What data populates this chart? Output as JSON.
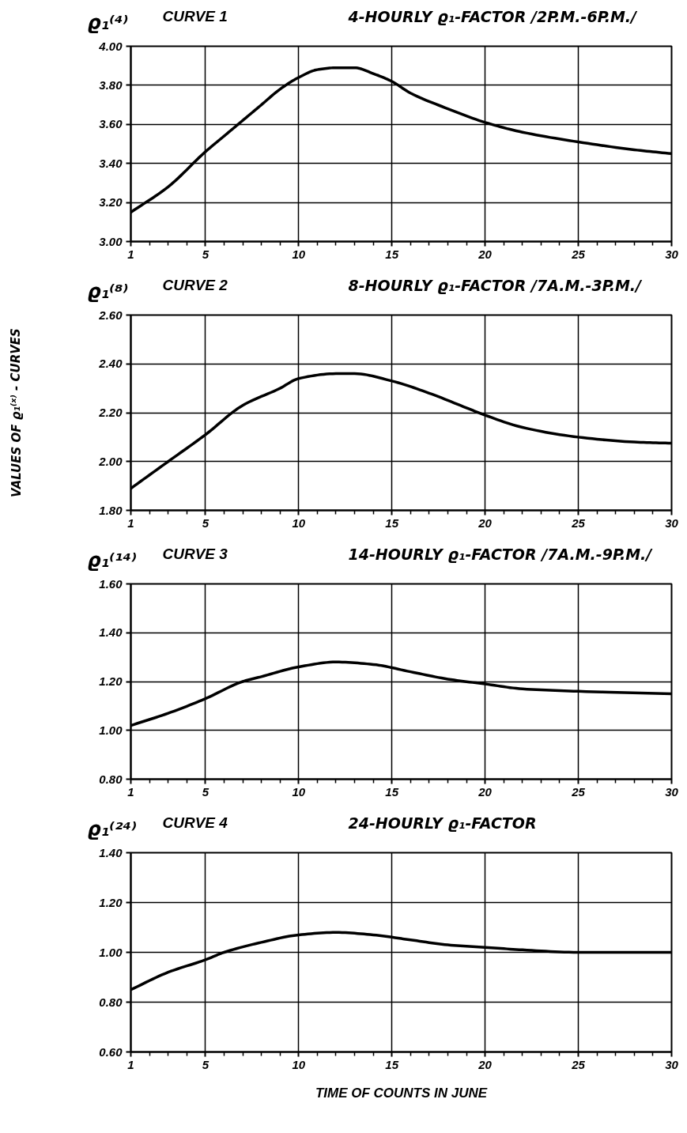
{
  "chart_data": [
    {
      "type": "line",
      "title": "CURVE 1",
      "subtitle": "4-HOURLY ϱ₁-FACTOR /2P.M.-6P.M./",
      "ylabel": "ϱ₁⁽⁴⁾",
      "x": [
        1,
        3,
        5,
        6,
        7,
        8,
        9,
        10,
        11,
        12,
        13,
        14,
        15,
        16,
        18,
        20,
        22,
        25,
        28,
        30
      ],
      "series": [
        {
          "color": "#000000",
          "values": [
            3.15,
            3.28,
            3.46,
            3.54,
            3.62,
            3.7,
            3.78,
            3.84,
            3.88,
            3.89,
            3.89,
            3.86,
            3.82,
            3.76,
            3.68,
            3.61,
            3.56,
            3.51,
            3.47,
            3.45
          ]
        }
      ],
      "xlim": [
        1,
        30
      ],
      "ylim": [
        3.0,
        4.0
      ],
      "xticks": [
        1,
        {
          "value": 2,
          "label": null
        },
        {
          "value": 3,
          "label": null
        },
        {
          "value": 4,
          "label": null
        },
        5,
        {
          "value": 6,
          "label": null
        },
        {
          "value": 7,
          "label": null
        },
        {
          "value": 8,
          "label": null
        },
        {
          "value": 9,
          "label": null
        },
        10,
        {
          "value": 11,
          "label": null
        },
        {
          "value": 12,
          "label": null
        },
        {
          "value": 13,
          "label": null
        },
        {
          "value": 14,
          "label": null
        },
        15,
        {
          "value": 16,
          "label": null
        },
        {
          "value": 17,
          "label": null
        },
        {
          "value": 18,
          "label": null
        },
        {
          "value": 19,
          "label": null
        },
        20,
        {
          "value": 21,
          "label": null
        },
        {
          "value": 22,
          "label": null
        },
        {
          "value": 23,
          "label": null
        },
        {
          "value": 24,
          "label": null
        },
        25,
        {
          "value": 26,
          "label": null
        },
        {
          "value": 27,
          "label": null
        },
        {
          "value": 28,
          "label": null
        },
        {
          "value": 29,
          "label": null
        },
        30
      ],
      "yticks": [
        {
          "value": 3.0,
          "label": "3.00"
        },
        {
          "value": 3.2,
          "label": "3.20"
        },
        {
          "value": 3.4,
          "label": "3.40"
        },
        {
          "value": 3.6,
          "label": "3.60"
        },
        {
          "value": 3.8,
          "label": "3.80"
        },
        {
          "value": 4.0,
          "label": "4.00"
        }
      ],
      "grid": true,
      "line_style": "solid"
    },
    {
      "type": "line",
      "title": "CURVE 2",
      "subtitle": "8-HOURLY ϱ₁-FACTOR /7A.M.-3P.M./",
      "ylabel": "ϱ₁⁽⁸⁾",
      "annotations": [
        "VALUES OF ϱ₁⁽ˣ⁾ - CURVES"
      ],
      "x": [
        1,
        3,
        5,
        7,
        9,
        10,
        12,
        13,
        15,
        17,
        19,
        20,
        22,
        25,
        28,
        30
      ],
      "series": [
        {
          "color": "#000000",
          "values": [
            1.89,
            2.0,
            2.11,
            2.23,
            2.3,
            2.34,
            2.36,
            2.36,
            2.33,
            2.28,
            2.22,
            2.19,
            2.14,
            2.1,
            2.08,
            2.075
          ]
        }
      ],
      "xlim": [
        1,
        30
      ],
      "ylim": [
        1.8,
        2.6
      ],
      "xticks": [
        1,
        {
          "value": 2,
          "label": null
        },
        {
          "value": 3,
          "label": null
        },
        {
          "value": 4,
          "label": null
        },
        5,
        {
          "value": 6,
          "label": null
        },
        {
          "value": 7,
          "label": null
        },
        {
          "value": 8,
          "label": null
        },
        {
          "value": 9,
          "label": null
        },
        10,
        {
          "value": 11,
          "label": null
        },
        {
          "value": 12,
          "label": null
        },
        {
          "value": 13,
          "label": null
        },
        {
          "value": 14,
          "label": null
        },
        15,
        {
          "value": 16,
          "label": null
        },
        {
          "value": 17,
          "label": null
        },
        {
          "value": 18,
          "label": null
        },
        {
          "value": 19,
          "label": null
        },
        20,
        {
          "value": 21,
          "label": null
        },
        {
          "value": 22,
          "label": null
        },
        {
          "value": 23,
          "label": null
        },
        {
          "value": 24,
          "label": null
        },
        25,
        {
          "value": 26,
          "label": null
        },
        {
          "value": 27,
          "label": null
        },
        {
          "value": 28,
          "label": null
        },
        {
          "value": 29,
          "label": null
        },
        30
      ],
      "yticks": [
        {
          "value": 1.8,
          "label": "1.80"
        },
        {
          "value": 2.0,
          "label": "2.00"
        },
        {
          "value": 2.2,
          "label": "2.20"
        },
        {
          "value": 2.4,
          "label": "2.40"
        },
        {
          "value": 2.6,
          "label": "2.60"
        }
      ],
      "grid": true,
      "line_style": "solid"
    },
    {
      "type": "line",
      "title": "CURVE 3",
      "subtitle": "14-HOURLY ϱ₁-FACTOR /7A.M.-9P.M./",
      "ylabel": "ϱ₁⁽¹⁴⁾",
      "x": [
        1,
        3,
        5,
        7,
        8,
        10,
        12,
        14,
        16,
        18,
        20,
        22,
        25,
        30
      ],
      "series": [
        {
          "color": "#000000",
          "values": [
            1.02,
            1.07,
            1.13,
            1.2,
            1.22,
            1.26,
            1.28,
            1.27,
            1.24,
            1.21,
            1.19,
            1.17,
            1.16,
            1.15
          ]
        }
      ],
      "xlim": [
        1,
        30
      ],
      "ylim": [
        0.8,
        1.6
      ],
      "xticks": [
        1,
        {
          "value": 2,
          "label": null
        },
        {
          "value": 3,
          "label": null
        },
        {
          "value": 4,
          "label": null
        },
        5,
        {
          "value": 6,
          "label": null
        },
        {
          "value": 7,
          "label": null
        },
        {
          "value": 8,
          "label": null
        },
        {
          "value": 9,
          "label": null
        },
        10,
        {
          "value": 11,
          "label": null
        },
        {
          "value": 12,
          "label": null
        },
        {
          "value": 13,
          "label": null
        },
        {
          "value": 14,
          "label": null
        },
        15,
        {
          "value": 16,
          "label": null
        },
        {
          "value": 17,
          "label": null
        },
        {
          "value": 18,
          "label": null
        },
        {
          "value": 19,
          "label": null
        },
        20,
        {
          "value": 21,
          "label": null
        },
        {
          "value": 22,
          "label": null
        },
        {
          "value": 23,
          "label": null
        },
        {
          "value": 24,
          "label": null
        },
        25,
        {
          "value": 26,
          "label": null
        },
        {
          "value": 27,
          "label": null
        },
        {
          "value": 28,
          "label": null
        },
        {
          "value": 29,
          "label": null
        },
        30
      ],
      "yticks": [
        {
          "value": 0.8,
          "label": "0.80"
        },
        {
          "value": 1.0,
          "label": "1.00"
        },
        {
          "value": 1.2,
          "label": "1.20"
        },
        {
          "value": 1.4,
          "label": "1.40"
        },
        {
          "value": 1.6,
          "label": "1.60"
        }
      ],
      "grid": true,
      "line_style": "solid"
    },
    {
      "type": "line",
      "title": "CURVE 4",
      "subtitle": "24-HOURLY ϱ₁-FACTOR",
      "ylabel": "ϱ₁⁽²⁴⁾",
      "xlabel": "TIME OF COUNTS IN JUNE",
      "x": [
        1,
        3,
        5,
        6,
        8,
        10,
        12,
        14,
        16,
        18,
        20,
        22,
        25,
        30
      ],
      "series": [
        {
          "color": "#000000",
          "values": [
            0.85,
            0.92,
            0.97,
            1.0,
            1.04,
            1.07,
            1.08,
            1.07,
            1.05,
            1.03,
            1.02,
            1.01,
            1.0,
            1.0
          ]
        }
      ],
      "xlim": [
        1,
        30
      ],
      "ylim": [
        0.6,
        1.4
      ],
      "xticks": [
        1,
        {
          "value": 2,
          "label": null
        },
        {
          "value": 3,
          "label": null
        },
        {
          "value": 4,
          "label": null
        },
        5,
        {
          "value": 6,
          "label": null
        },
        {
          "value": 7,
          "label": null
        },
        {
          "value": 8,
          "label": null
        },
        {
          "value": 9,
          "label": null
        },
        10,
        {
          "value": 11,
          "label": null
        },
        {
          "value": 12,
          "label": null
        },
        {
          "value": 13,
          "label": null
        },
        {
          "value": 14,
          "label": null
        },
        15,
        {
          "value": 16,
          "label": null
        },
        {
          "value": 17,
          "label": null
        },
        {
          "value": 18,
          "label": null
        },
        {
          "value": 19,
          "label": null
        },
        20,
        {
          "value": 21,
          "label": null
        },
        {
          "value": 22,
          "label": null
        },
        {
          "value": 23,
          "label": null
        },
        {
          "value": 24,
          "label": null
        },
        25,
        {
          "value": 26,
          "label": null
        },
        {
          "value": 27,
          "label": null
        },
        {
          "value": 28,
          "label": null
        },
        {
          "value": 29,
          "label": null
        },
        30
      ],
      "yticks": [
        {
          "value": 0.6,
          "label": "0.60"
        },
        {
          "value": 0.8,
          "label": "0.80"
        },
        {
          "value": 1.0,
          "label": "1.00"
        },
        {
          "value": 1.2,
          "label": "1.20"
        },
        {
          "value": 1.4,
          "label": "1.40"
        }
      ],
      "grid": true,
      "line_style": "solid"
    }
  ]
}
